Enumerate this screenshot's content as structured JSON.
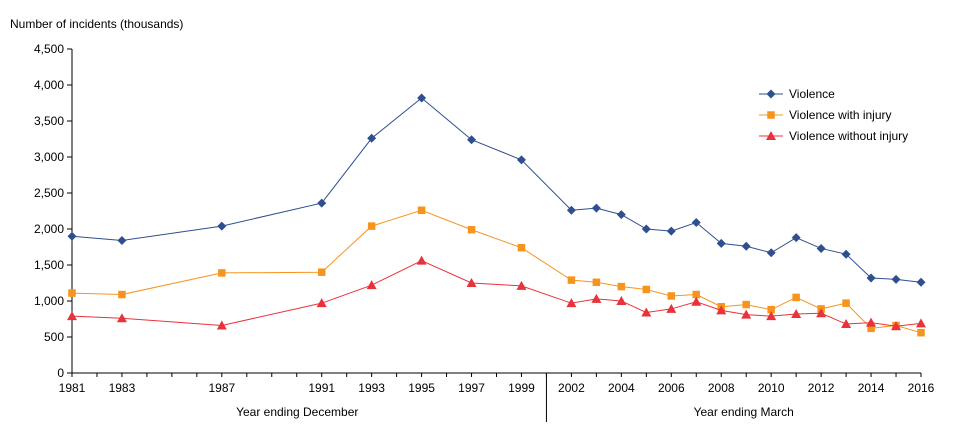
{
  "chart_data": {
    "type": "line",
    "ylabel": "Number of incidents (thousands)",
    "ylim": [
      0,
      4500
    ],
    "yticks": [
      0,
      500,
      1000,
      1500,
      2000,
      2500,
      3000,
      3500,
      4000,
      4500
    ],
    "ytick_labels": [
      "0",
      "500",
      "1,000",
      "1,500",
      "2,000",
      "2,500",
      "3,000",
      "3,500",
      "4,000",
      "4,500"
    ],
    "x": [
      1981,
      1983,
      1987,
      1991,
      1993,
      1995,
      1997,
      1999,
      2002,
      2003,
      2004,
      2005,
      2006,
      2007,
      2008,
      2009,
      2010,
      2011,
      2012,
      2013,
      2014,
      2015,
      2016
    ],
    "xtick_labels": [
      "1981",
      "1983",
      "1987",
      "1991",
      "1993",
      "1995",
      "1997",
      "1999",
      "2002",
      "2004",
      "2006",
      "2008",
      "2010",
      "2012",
      "2014",
      "2016"
    ],
    "x_groups": [
      "Year ending December",
      "Year ending March"
    ],
    "legend_position": "top-right",
    "grid": false,
    "series": [
      {
        "name": "Violence",
        "color": "#2F4F8F",
        "marker": "diamond",
        "values": [
          1900,
          1840,
          2040,
          2360,
          3260,
          3820,
          3240,
          2960,
          2260,
          2290,
          2200,
          2000,
          1970,
          2090,
          1800,
          1760,
          1670,
          1880,
          1730,
          1650,
          1320,
          1300,
          1260
        ]
      },
      {
        "name": "Violence with injury",
        "color": "#F7941D",
        "marker": "square",
        "values": [
          1110,
          1090,
          1390,
          1400,
          2040,
          2260,
          1990,
          1740,
          1290,
          1260,
          1200,
          1160,
          1070,
          1090,
          920,
          950,
          880,
          1050,
          890,
          970,
          620,
          660,
          560
        ]
      },
      {
        "name": "Violence without injury",
        "color": "#E8333C",
        "marker": "triangle",
        "values": [
          790,
          760,
          660,
          970,
          1220,
          1560,
          1250,
          1210,
          970,
          1030,
          1000,
          840,
          890,
          990,
          870,
          810,
          790,
          820,
          830,
          680,
          700,
          650,
          690
        ]
      }
    ]
  }
}
